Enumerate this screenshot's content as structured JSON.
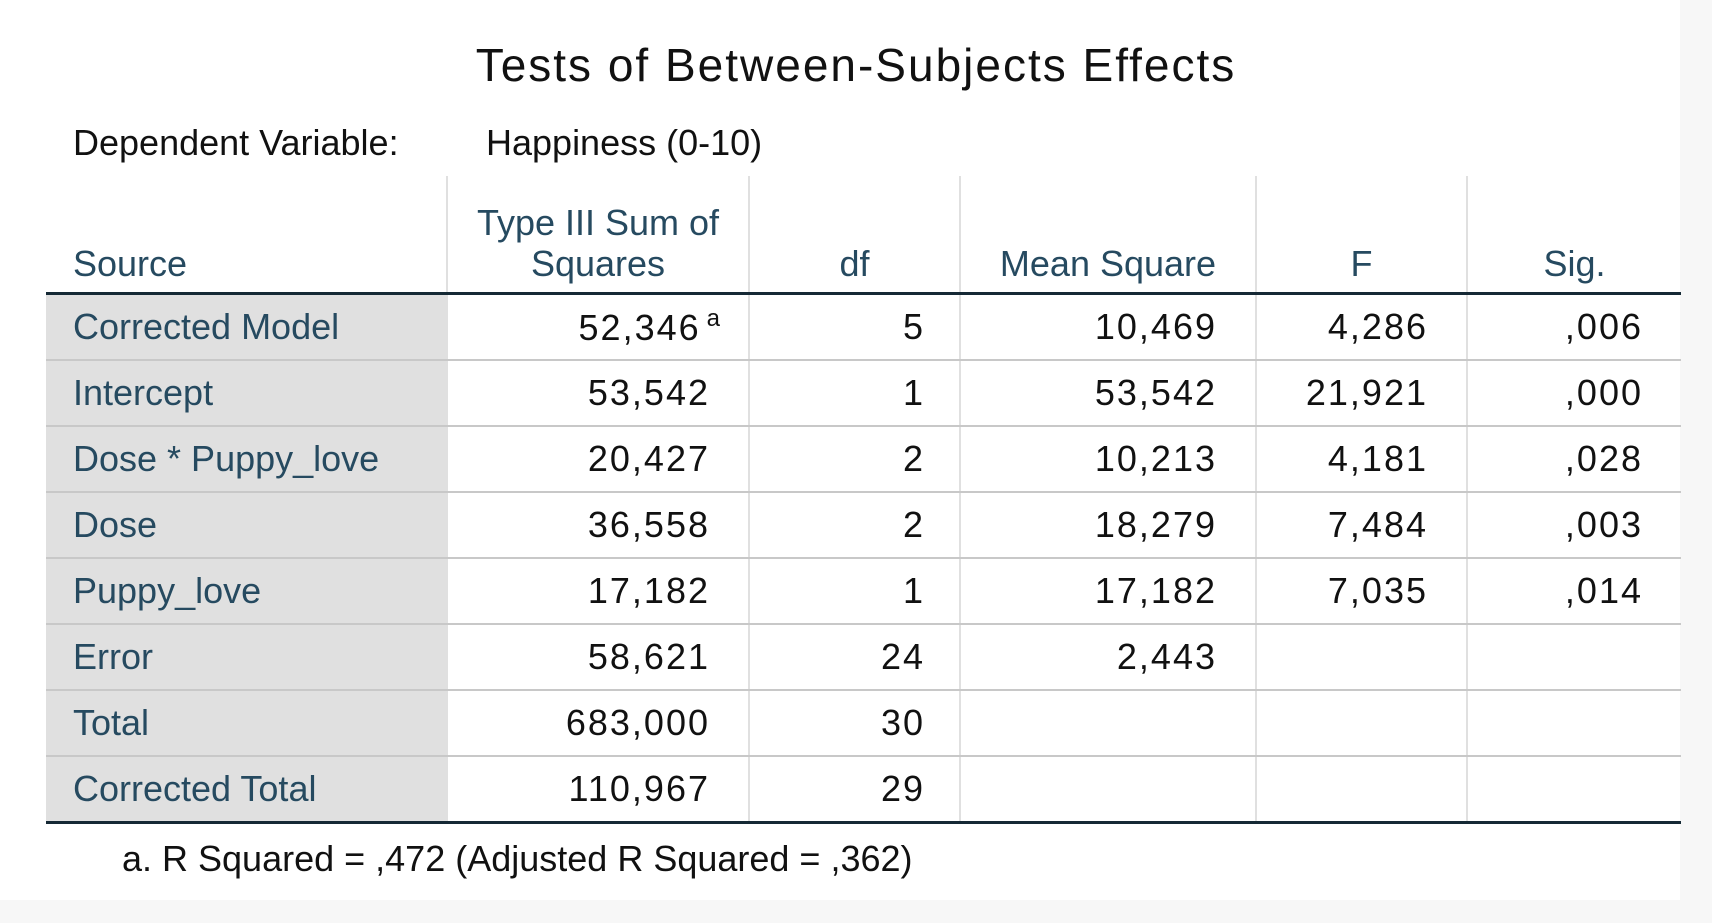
{
  "title": "Tests of Between-Subjects Effects",
  "dependent_variable": {
    "label": "Dependent Variable:",
    "value": "Happiness (0-10)"
  },
  "table": {
    "headers": {
      "source": "Source",
      "ss_line1": "Type III Sum of",
      "ss_line2": "Squares",
      "df": "df",
      "ms": "Mean Square",
      "f": "F",
      "sig": "Sig."
    },
    "rows": [
      {
        "source": "Corrected Model",
        "ss": "52,346",
        "ss_sup": "a",
        "df": "5",
        "ms": "10,469",
        "f": "4,286",
        "sig": ",006"
      },
      {
        "source": "Intercept",
        "ss": "53,542",
        "df": "1",
        "ms": "53,542",
        "f": "21,921",
        "sig": ",000"
      },
      {
        "source": "Dose * Puppy_love",
        "ss": "20,427",
        "df": "2",
        "ms": "10,213",
        "f": "4,181",
        "sig": ",028"
      },
      {
        "source": "Dose",
        "ss": "36,558",
        "df": "2",
        "ms": "18,279",
        "f": "7,484",
        "sig": ",003"
      },
      {
        "source": "Puppy_love",
        "ss": "17,182",
        "df": "1",
        "ms": "17,182",
        "f": "7,035",
        "sig": ",014"
      },
      {
        "source": "Error",
        "ss": "58,621",
        "df": "24",
        "ms": "2,443",
        "f": "",
        "sig": ""
      },
      {
        "source": "Total",
        "ss": "683,000",
        "df": "30",
        "ms": "",
        "f": "",
        "sig": ""
      },
      {
        "source": "Corrected Total",
        "ss": "110,967",
        "df": "29",
        "ms": "",
        "f": "",
        "sig": ""
      }
    ]
  },
  "footnote": "a. R Squared = ,472 (Adjusted R Squared = ,362)",
  "colors": {
    "header_text": "#264a60",
    "row_label_bg": "#e0e0e0",
    "rule_dark": "#152935"
  }
}
